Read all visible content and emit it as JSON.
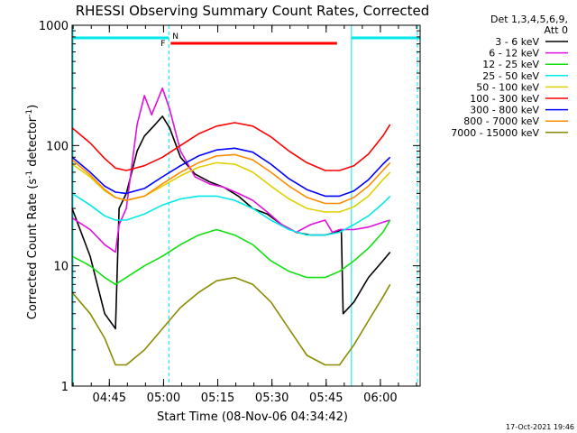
{
  "chart_data": {
    "type": "line",
    "title": "RHESSI Observing Summary Count Rates, Corrected",
    "xlabel": "Start Time (08-Nov-06 04:34:42)",
    "ylabel": "Corrected Count Rate (s",
    "ylabel_sup": "-1",
    "ylabel_tail": " detector",
    "ylabel_tail_sup": "-1",
    "ylabel_close": ")",
    "y_scale": "log",
    "ylim": [
      1,
      1000
    ],
    "xlim": [
      "04:34:42",
      "06:11:00"
    ],
    "x_ticks": [
      "04:45",
      "05:00",
      "05:15",
      "05:30",
      "05:45",
      "06:00"
    ],
    "y_ticks": [
      "1",
      "10",
      "100",
      "1000"
    ],
    "legend_header": [
      "Det 1,3,4,5,6,9,",
      "Att 0"
    ],
    "legend_position": "right",
    "footer_timestamp": "17-Oct-2021 19:46",
    "flag_labels": {
      "saa": "N",
      "flare": "F"
    },
    "series": [
      {
        "name": "3 - 6 keV",
        "color": "#000000",
        "points": [
          [
            0,
            30
          ],
          [
            5,
            12
          ],
          [
            9,
            4
          ],
          [
            12,
            3
          ],
          [
            13,
            30
          ],
          [
            15,
            40
          ],
          [
            18,
            90
          ],
          [
            20,
            120
          ],
          [
            23,
            150
          ],
          [
            25,
            175
          ],
          [
            27,
            140
          ],
          [
            30,
            80
          ],
          [
            34,
            58
          ],
          [
            38,
            50
          ],
          [
            42,
            45
          ],
          [
            46,
            38
          ],
          [
            50,
            30
          ],
          [
            54,
            27
          ],
          [
            58,
            22
          ],
          [
            62,
            19
          ],
          [
            66,
            18
          ],
          [
            70,
            18
          ],
          [
            73,
            19
          ],
          [
            74.5,
            20
          ],
          [
            75,
            4
          ],
          [
            78,
            5
          ],
          [
            82,
            8
          ],
          [
            86,
            11
          ],
          [
            88,
            13
          ]
        ]
      },
      {
        "name": "6 - 12 keV",
        "color": "#e010e0",
        "points": [
          [
            0,
            25
          ],
          [
            5,
            20
          ],
          [
            9,
            15
          ],
          [
            12,
            13
          ],
          [
            13,
            22
          ],
          [
            15,
            30
          ],
          [
            18,
            150
          ],
          [
            20,
            260
          ],
          [
            22,
            180
          ],
          [
            25,
            300
          ],
          [
            27,
            200
          ],
          [
            30,
            90
          ],
          [
            34,
            55
          ],
          [
            38,
            48
          ],
          [
            42,
            45
          ],
          [
            46,
            40
          ],
          [
            50,
            35
          ],
          [
            54,
            28
          ],
          [
            58,
            22
          ],
          [
            62,
            19
          ],
          [
            66,
            22
          ],
          [
            70,
            24
          ],
          [
            72,
            19
          ],
          [
            74,
            20
          ],
          [
            78,
            20
          ],
          [
            82,
            21
          ],
          [
            86,
            23
          ],
          [
            88,
            24
          ]
        ]
      },
      {
        "name": "12 - 25 keV",
        "color": "#10e010",
        "points": [
          [
            0,
            12
          ],
          [
            5,
            10
          ],
          [
            9,
            8
          ],
          [
            12,
            7
          ],
          [
            15,
            8
          ],
          [
            20,
            10
          ],
          [
            25,
            12
          ],
          [
            30,
            15
          ],
          [
            35,
            18
          ],
          [
            40,
            20
          ],
          [
            45,
            18
          ],
          [
            50,
            15
          ],
          [
            55,
            11
          ],
          [
            60,
            9
          ],
          [
            65,
            8
          ],
          [
            70,
            8
          ],
          [
            74,
            9
          ],
          [
            78,
            11
          ],
          [
            82,
            14
          ],
          [
            86,
            19
          ],
          [
            88,
            24
          ]
        ]
      },
      {
        "name": "25 - 50 keV",
        "color": "#00e8e8",
        "points": [
          [
            0,
            40
          ],
          [
            5,
            32
          ],
          [
            9,
            26
          ],
          [
            12,
            24
          ],
          [
            15,
            24
          ],
          [
            20,
            27
          ],
          [
            25,
            32
          ],
          [
            30,
            36
          ],
          [
            35,
            38
          ],
          [
            40,
            38
          ],
          [
            45,
            35
          ],
          [
            50,
            30
          ],
          [
            55,
            24
          ],
          [
            60,
            20
          ],
          [
            65,
            18
          ],
          [
            70,
            18
          ],
          [
            74,
            19
          ],
          [
            78,
            22
          ],
          [
            82,
            26
          ],
          [
            86,
            33
          ],
          [
            88,
            38
          ]
        ]
      },
      {
        "name": "50 - 100 keV",
        "color": "#e0d000",
        "points": [
          [
            0,
            70
          ],
          [
            5,
            55
          ],
          [
            9,
            42
          ],
          [
            12,
            37
          ],
          [
            15,
            35
          ],
          [
            20,
            38
          ],
          [
            25,
            46
          ],
          [
            30,
            56
          ],
          [
            35,
            66
          ],
          [
            40,
            72
          ],
          [
            45,
            70
          ],
          [
            50,
            60
          ],
          [
            55,
            46
          ],
          [
            60,
            36
          ],
          [
            65,
            30
          ],
          [
            70,
            28
          ],
          [
            74,
            28
          ],
          [
            78,
            31
          ],
          [
            82,
            38
          ],
          [
            86,
            52
          ],
          [
            88,
            60
          ]
        ]
      },
      {
        "name": "100 - 300 keV",
        "color": "#ff0000",
        "points": [
          [
            0,
            140
          ],
          [
            5,
            105
          ],
          [
            9,
            78
          ],
          [
            12,
            65
          ],
          [
            15,
            62
          ],
          [
            20,
            68
          ],
          [
            25,
            80
          ],
          [
            30,
            100
          ],
          [
            35,
            125
          ],
          [
            40,
            145
          ],
          [
            45,
            155
          ],
          [
            50,
            145
          ],
          [
            55,
            118
          ],
          [
            60,
            90
          ],
          [
            65,
            72
          ],
          [
            70,
            62
          ],
          [
            74,
            62
          ],
          [
            78,
            68
          ],
          [
            82,
            85
          ],
          [
            86,
            120
          ],
          [
            88,
            150
          ]
        ]
      },
      {
        "name": "300 - 800 keV",
        "color": "#0000ff",
        "points": [
          [
            0,
            80
          ],
          [
            5,
            60
          ],
          [
            9,
            46
          ],
          [
            12,
            41
          ],
          [
            15,
            40
          ],
          [
            20,
            44
          ],
          [
            25,
            55
          ],
          [
            30,
            68
          ],
          [
            35,
            82
          ],
          [
            40,
            92
          ],
          [
            45,
            95
          ],
          [
            50,
            88
          ],
          [
            55,
            70
          ],
          [
            60,
            53
          ],
          [
            65,
            43
          ],
          [
            70,
            38
          ],
          [
            74,
            38
          ],
          [
            78,
            42
          ],
          [
            82,
            52
          ],
          [
            86,
            70
          ],
          [
            88,
            80
          ]
        ]
      },
      {
        "name": "800 - 7000 keV",
        "color": "#ff8c00",
        "points": [
          [
            0,
            76
          ],
          [
            5,
            57
          ],
          [
            9,
            43
          ],
          [
            12,
            37
          ],
          [
            15,
            35
          ],
          [
            20,
            38
          ],
          [
            25,
            48
          ],
          [
            30,
            60
          ],
          [
            35,
            72
          ],
          [
            40,
            82
          ],
          [
            45,
            84
          ],
          [
            50,
            76
          ],
          [
            55,
            60
          ],
          [
            60,
            46
          ],
          [
            65,
            37
          ],
          [
            70,
            33
          ],
          [
            74,
            33
          ],
          [
            78,
            37
          ],
          [
            82,
            46
          ],
          [
            86,
            62
          ],
          [
            88,
            72
          ]
        ]
      },
      {
        "name": "7000 - 15000 keV",
        "color": "#8b8b00",
        "points": [
          [
            0,
            6
          ],
          [
            5,
            4
          ],
          [
            9,
            2.5
          ],
          [
            12,
            1.5
          ],
          [
            15,
            1.5
          ],
          [
            20,
            2
          ],
          [
            25,
            3
          ],
          [
            30,
            4.5
          ],
          [
            35,
            6
          ],
          [
            40,
            7.5
          ],
          [
            45,
            8
          ],
          [
            50,
            7
          ],
          [
            55,
            5
          ],
          [
            60,
            3
          ],
          [
            65,
            1.8
          ],
          [
            70,
            1.5
          ],
          [
            74,
            1.5
          ],
          [
            78,
            2.2
          ],
          [
            82,
            3.5
          ],
          [
            86,
            5.5
          ],
          [
            88,
            7
          ]
        ]
      }
    ]
  }
}
